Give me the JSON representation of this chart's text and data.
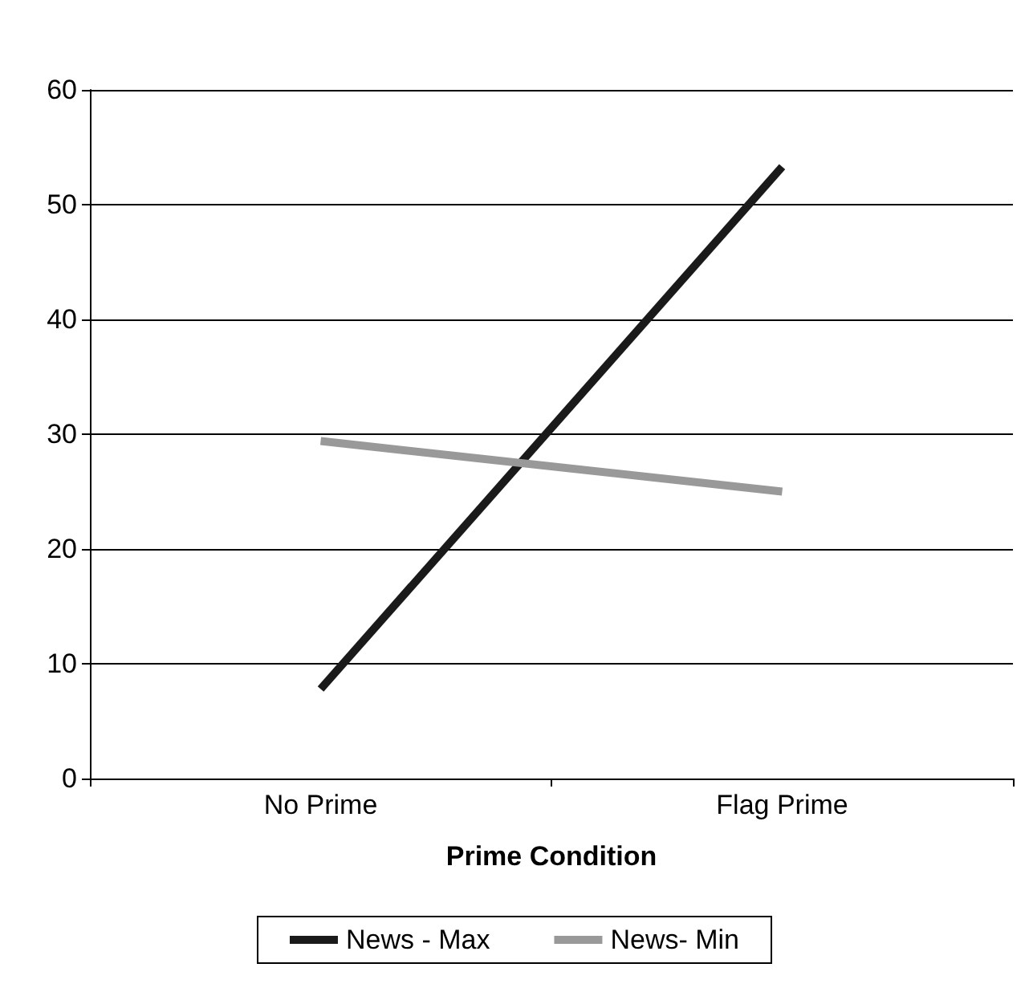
{
  "chart_data": {
    "type": "line",
    "xlabel": "Prime Condition",
    "categories": [
      "No Prime",
      "Flag Prime"
    ],
    "series": [
      {
        "name": "News - Max",
        "color": "#1a1a1a",
        "values": [
          7.8,
          53.3
        ]
      },
      {
        "name": "News- Min",
        "color": "#999999",
        "values": [
          29.4,
          25.0
        ]
      }
    ],
    "ylim": [
      0,
      60
    ],
    "yticks": [
      0,
      10,
      20,
      30,
      40,
      50,
      60
    ],
    "grid": "y",
    "legend": "bottom",
    "marker": "none",
    "line_style": "solid"
  }
}
